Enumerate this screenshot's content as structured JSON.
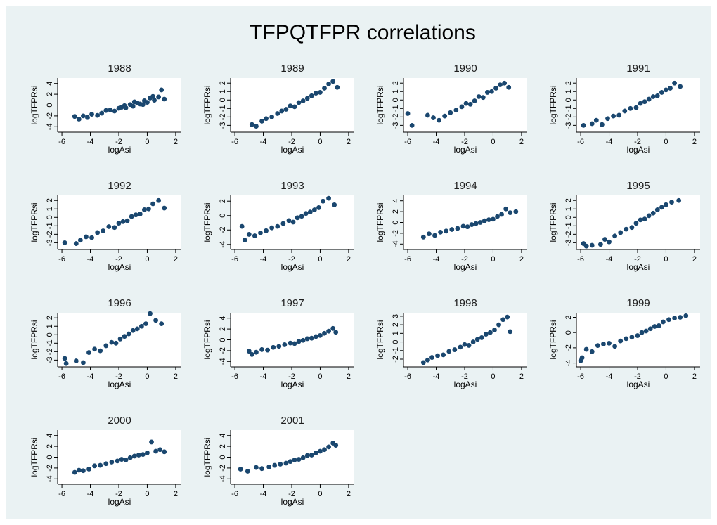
{
  "title": "TFPQTFPR correlations",
  "chart_data": [
    {
      "type": "scatter",
      "title": "1988",
      "xlabel": "logAsi",
      "ylabel": "logTFPRsi",
      "color": "#1a476f",
      "xlim": [
        -6.3,
        2.4
      ],
      "ylim": [
        -5,
        5
      ],
      "xticks": [
        -6,
        -4,
        -2,
        0,
        2
      ],
      "yticks": [
        -4,
        -2,
        0,
        2,
        4
      ],
      "x": [
        -5.1,
        -4.8,
        -4.5,
        -4.2,
        -3.9,
        -3.5,
        -3.2,
        -2.9,
        -2.6,
        -2.3,
        -2,
        -1.8,
        -1.5,
        -1.2,
        -1,
        -0.7,
        -0.5,
        -0.2,
        0,
        0.2,
        0.5,
        0.8,
        1,
        1.2,
        -1.6,
        -0.9,
        -0.3,
        0.4
      ],
      "y": [
        -2.1,
        -2.6,
        -2,
        -2.3,
        -1.7,
        -1.9,
        -1.5,
        -1,
        -0.9,
        -1.1,
        -0.6,
        -0.4,
        -0.5,
        0.1,
        -0.2,
        0.4,
        0.2,
        0.8,
        0.5,
        1.3,
        0.9,
        1.5,
        2.8,
        1.1,
        -0.1,
        0.6,
        0.1,
        1.6
      ]
    },
    {
      "type": "scatter",
      "title": "1989",
      "xlabel": "logAsi",
      "ylabel": "logTFPRsi",
      "color": "#1a476f",
      "xlim": [
        -6.3,
        2.4
      ],
      "ylim": [
        -3.8,
        2.6
      ],
      "xticks": [
        -6,
        -4,
        -2,
        0,
        2
      ],
      "yticks": [
        -3,
        -2,
        -1,
        0,
        1,
        2
      ],
      "x": [
        -4.8,
        -4.5,
        -4.1,
        -3.8,
        -3.4,
        -3,
        -2.7,
        -2.4,
        -2.1,
        -1.8,
        -1.5,
        -1.2,
        -0.9,
        -0.6,
        -0.3,
        0,
        0.3,
        0.6,
        0.9,
        1.2
      ],
      "y": [
        -2.9,
        -3.1,
        -2.5,
        -2.2,
        -2,
        -1.6,
        -1.3,
        -1.1,
        -0.7,
        -0.8,
        -0.3,
        -0.1,
        0.2,
        0.5,
        0.8,
        0.9,
        1.4,
        1.9,
        2.2,
        1.5
      ]
    },
    {
      "type": "scatter",
      "title": "1990",
      "xlabel": "logAsi",
      "ylabel": "logTFPRsi",
      "color": "#1a476f",
      "xlim": [
        -6.3,
        2.4
      ],
      "ylim": [
        -3.8,
        2.6
      ],
      "xticks": [
        -6,
        -4,
        -2,
        0,
        2
      ],
      "yticks": [
        -3,
        -2,
        -1,
        0,
        1,
        2
      ],
      "x": [
        -6,
        -5.7,
        -4.6,
        -4.2,
        -3.8,
        -3.4,
        -3,
        -2.6,
        -2.2,
        -1.9,
        -1.6,
        -1.3,
        -1,
        -0.7,
        -0.4,
        -0.1,
        0.2,
        0.5,
        0.8,
        1.1
      ],
      "y": [
        -1.6,
        -3,
        -1.8,
        -2.1,
        -2.4,
        -1.9,
        -1.5,
        -1.2,
        -0.8,
        -0.4,
        -0.5,
        -0.1,
        0.4,
        0.3,
        0.9,
        1,
        1.4,
        1.8,
        2,
        1.5
      ]
    },
    {
      "type": "scatter",
      "title": "1991",
      "xlabel": "logAsi",
      "ylabel": "logTFPRsi",
      "color": "#1a476f",
      "xlim": [
        -6.3,
        2.4
      ],
      "ylim": [
        -3.8,
        2.6
      ],
      "xticks": [
        -6,
        -4,
        -2,
        0,
        2
      ],
      "yticks": [
        -3,
        -2,
        -1,
        0,
        1,
        2
      ],
      "x": [
        -5.8,
        -5.2,
        -4.9,
        -4.5,
        -4.1,
        -3.7,
        -3.3,
        -2.9,
        -2.5,
        -2.1,
        -1.8,
        -1.5,
        -1.2,
        -0.9,
        -0.6,
        -0.3,
        0,
        0.3,
        0.6,
        1
      ],
      "y": [
        -3,
        -2.8,
        -2.4,
        -2.9,
        -2.2,
        -1.9,
        -1.8,
        -1.3,
        -1,
        -0.9,
        -0.4,
        -0.2,
        0.1,
        0.4,
        0.5,
        0.9,
        1.2,
        1.4,
        2,
        1.6
      ]
    },
    {
      "type": "scatter",
      "title": "1992",
      "xlabel": "logAsi",
      "ylabel": "logTFPRsi",
      "color": "#1a476f",
      "xlim": [
        -6.3,
        2.4
      ],
      "ylim": [
        -3.8,
        2.6
      ],
      "xticks": [
        -6,
        -4,
        -2,
        0,
        2
      ],
      "yticks": [
        -3,
        -2,
        -1,
        0,
        1,
        2
      ],
      "x": [
        -5.8,
        -5,
        -4.7,
        -4.3,
        -3.9,
        -3.5,
        -3.1,
        -2.7,
        -2.3,
        -2,
        -1.7,
        -1.4,
        -1.1,
        -0.8,
        -0.5,
        -0.2,
        0.1,
        0.4,
        0.8,
        1.2
      ],
      "y": [
        -3,
        -3.1,
        -2.7,
        -2.3,
        -2.4,
        -1.8,
        -1.6,
        -1.1,
        -1.2,
        -0.7,
        -0.5,
        -0.4,
        0.1,
        0.3,
        0.4,
        0.9,
        1,
        1.6,
        2,
        1.1
      ]
    },
    {
      "type": "scatter",
      "title": "1993",
      "xlabel": "logAsi",
      "ylabel": "logTFPRsi",
      "color": "#1a476f",
      "xlim": [
        -6.3,
        2.4
      ],
      "ylim": [
        -4.7,
        2.8
      ],
      "xticks": [
        -6,
        -4,
        -2,
        0,
        2
      ],
      "yticks": [
        -4,
        -2,
        0,
        2
      ],
      "x": [
        -5.5,
        -5.3,
        -5,
        -4.6,
        -4.2,
        -3.8,
        -3.4,
        -3,
        -2.6,
        -2.2,
        -1.9,
        -1.6,
        -1.3,
        -1,
        -0.7,
        -0.4,
        -0.1,
        0.2,
        0.6,
        1
      ],
      "y": [
        -1.5,
        -3.4,
        -2.6,
        -2.8,
        -2.4,
        -2.1,
        -1.7,
        -1.5,
        -1.1,
        -0.7,
        -0.9,
        -0.3,
        -0.1,
        0.3,
        0.5,
        0.8,
        1.1,
        2,
        2.4,
        1.5
      ]
    },
    {
      "type": "scatter",
      "title": "1994",
      "xlabel": "logAsi",
      "ylabel": "logTFPRsi",
      "color": "#1a476f",
      "xlim": [
        -6.3,
        2.4
      ],
      "ylim": [
        -5,
        5
      ],
      "xticks": [
        -6,
        -4,
        -2,
        0,
        2
      ],
      "yticks": [
        -4,
        -2,
        0,
        2,
        4
      ],
      "x": [
        -4.9,
        -4.5,
        -4.1,
        -3.7,
        -3.3,
        -2.9,
        -2.5,
        -2.1,
        -1.8,
        -1.5,
        -1.2,
        -0.9,
        -0.6,
        -0.3,
        0,
        0.3,
        0.6,
        0.9,
        1.2,
        1.6
      ],
      "y": [
        -2.7,
        -2.1,
        -2.4,
        -1.8,
        -1.6,
        -1.3,
        -1.1,
        -0.7,
        -0.8,
        -0.4,
        -0.2,
        0,
        0.3,
        0.5,
        0.6,
        1.1,
        1.5,
        2.5,
        1.8,
        2
      ]
    },
    {
      "type": "scatter",
      "title": "1995",
      "xlabel": "logAsi",
      "ylabel": "logTFPRsi",
      "color": "#1a476f",
      "xlim": [
        -6.3,
        2.4
      ],
      "ylim": [
        -3.8,
        2.6
      ],
      "xticks": [
        -6,
        -4,
        -2,
        0,
        2
      ],
      "yticks": [
        -3,
        -2,
        -1,
        0,
        1,
        2
      ],
      "x": [
        -5.8,
        -5.6,
        -5.2,
        -4.6,
        -4.3,
        -4,
        -3.6,
        -3.2,
        -2.8,
        -2.4,
        -2.1,
        -1.8,
        -1.5,
        -1.2,
        -0.9,
        -0.6,
        -0.3,
        0,
        0.4,
        0.9
      ],
      "y": [
        -3.1,
        -3.4,
        -3.3,
        -3.2,
        -2.6,
        -2.9,
        -2.2,
        -1.8,
        -1.4,
        -1.2,
        -0.7,
        -0.3,
        -0.2,
        0.2,
        0.5,
        0.9,
        1.2,
        1.5,
        1.8,
        2
      ]
    },
    {
      "type": "scatter",
      "title": "1996",
      "xlabel": "logAsi",
      "ylabel": "logTFPRsi",
      "color": "#1a476f",
      "xlim": [
        -6.3,
        2.4
      ],
      "ylim": [
        -3.8,
        2.6
      ],
      "xticks": [
        -6,
        -4,
        -2,
        0,
        2
      ],
      "yticks": [
        -3,
        -2,
        -1,
        0,
        1,
        2
      ],
      "x": [
        -5.8,
        -5.7,
        -5,
        -4.5,
        -4.1,
        -3.7,
        -3.3,
        -2.9,
        -2.5,
        -2.2,
        -1.9,
        -1.6,
        -1.3,
        -1,
        -0.7,
        -0.4,
        -0.1,
        0.2,
        0.6,
        1
      ],
      "y": [
        -2.8,
        -3.4,
        -3.1,
        -3.3,
        -2.1,
        -1.7,
        -1.9,
        -1.3,
        -0.9,
        -1,
        -0.5,
        -0.2,
        0.1,
        0.5,
        0.7,
        1,
        1.3,
        2.5,
        1.7,
        1.3
      ]
    },
    {
      "type": "scatter",
      "title": "1997",
      "xlabel": "logAsi",
      "ylabel": "logTFPRsi",
      "color": "#1a476f",
      "xlim": [
        -6.3,
        2.4
      ],
      "ylim": [
        -5,
        5
      ],
      "xticks": [
        -6,
        -4,
        -2,
        0,
        2
      ],
      "yticks": [
        -4,
        -2,
        0,
        2,
        4
      ],
      "x": [
        -5,
        -4.8,
        -4.5,
        -4.1,
        -3.7,
        -3.3,
        -2.9,
        -2.5,
        -2.1,
        -1.8,
        -1.5,
        -1.2,
        -0.9,
        -0.6,
        -0.3,
        0,
        0.3,
        0.6,
        0.9,
        1.1
      ],
      "y": [
        -2.1,
        -2.7,
        -2.3,
        -1.8,
        -1.9,
        -1.4,
        -1.2,
        -0.9,
        -0.6,
        -0.7,
        -0.3,
        -0.1,
        0.2,
        0.3,
        0.6,
        0.8,
        1.2,
        1.6,
        2.1,
        1.4
      ]
    },
    {
      "type": "scatter",
      "title": "1998",
      "xlabel": "logAsi",
      "ylabel": "logTFPRsi",
      "color": "#1a476f",
      "xlim": [
        -6.3,
        2.4
      ],
      "ylim": [
        -2.9,
        3.4
      ],
      "xticks": [
        -6,
        -4,
        -2,
        0,
        2
      ],
      "yticks": [
        -2,
        -1,
        0,
        1,
        2,
        3
      ],
      "x": [
        -4.9,
        -4.6,
        -4.3,
        -3.9,
        -3.5,
        -3.1,
        -2.7,
        -2.3,
        -2,
        -1.7,
        -1.4,
        -1.1,
        -0.8,
        -0.5,
        -0.2,
        0.1,
        0.4,
        0.7,
        1,
        1.2
      ],
      "y": [
        -2.4,
        -2.1,
        -1.8,
        -1.6,
        -1.5,
        -1.1,
        -0.9,
        -0.6,
        -0.3,
        -0.4,
        0,
        0.3,
        0.5,
        0.9,
        1.1,
        1.4,
        2,
        2.6,
        2.9,
        1.2
      ]
    },
    {
      "type": "scatter",
      "title": "1999",
      "xlabel": "logAsi",
      "ylabel": "logTFPRsi",
      "color": "#1a476f",
      "xlim": [
        -6.3,
        2.4
      ],
      "ylim": [
        -4.5,
        2.6
      ],
      "xticks": [
        -6,
        -4,
        -2,
        0,
        2
      ],
      "yticks": [
        -4,
        -2,
        0,
        2
      ],
      "x": [
        -6,
        -5.9,
        -5.6,
        -5.2,
        -4.8,
        -4.4,
        -4,
        -3.6,
        -3.2,
        -2.8,
        -2.4,
        -2,
        -1.7,
        -1.4,
        -1.1,
        -0.8,
        -0.5,
        -0.2,
        0.2,
        0.6,
        1,
        1.4
      ],
      "y": [
        -3.7,
        -3.3,
        -2.2,
        -2.5,
        -1.7,
        -1.5,
        -1.4,
        -1.8,
        -1.1,
        -0.8,
        -0.6,
        -0.4,
        0,
        0.2,
        0.5,
        0.8,
        0.9,
        1.4,
        1.7,
        1.9,
        2,
        2.2
      ]
    },
    {
      "type": "scatter",
      "title": "2000",
      "xlabel": "logAsi",
      "ylabel": "logTFPRsi",
      "color": "#1a476f",
      "xlim": [
        -6.3,
        2.4
      ],
      "ylim": [
        -5,
        5
      ],
      "xticks": [
        -6,
        -4,
        -2,
        0,
        2
      ],
      "yticks": [
        -4,
        -2,
        0,
        2,
        4
      ],
      "x": [
        -5.1,
        -4.8,
        -4.5,
        -4.1,
        -3.7,
        -3.3,
        -2.9,
        -2.5,
        -2.1,
        -1.8,
        -1.5,
        -1.2,
        -0.9,
        -0.6,
        -0.3,
        0,
        0.3,
        0.6,
        0.9,
        1.2
      ],
      "y": [
        -2.8,
        -2.4,
        -2.5,
        -2.2,
        -1.6,
        -1.5,
        -1.2,
        -0.9,
        -0.7,
        -0.4,
        -0.5,
        -0.1,
        0.2,
        0.4,
        0.5,
        0.8,
        2.8,
        1.1,
        1.4,
        1
      ]
    },
    {
      "type": "scatter",
      "title": "2001",
      "xlabel": "logAsi",
      "ylabel": "logTFPRsi",
      "color": "#1a476f",
      "xlim": [
        -6.3,
        2.4
      ],
      "ylim": [
        -5,
        5
      ],
      "xticks": [
        -6,
        -4,
        -2,
        0,
        2
      ],
      "yticks": [
        -4,
        -2,
        0,
        2,
        4
      ],
      "x": [
        -5.6,
        -5.1,
        -4.5,
        -4.1,
        -3.6,
        -3.2,
        -2.8,
        -2.4,
        -2.1,
        -1.8,
        -1.5,
        -1.2,
        -0.9,
        -0.6,
        -0.3,
        0,
        0.3,
        0.6,
        0.9,
        1.1
      ],
      "y": [
        -2.2,
        -2.6,
        -1.9,
        -2.1,
        -1.8,
        -1.5,
        -1.3,
        -1.1,
        -0.8,
        -0.5,
        -0.4,
        -0.1,
        0.3,
        0.4,
        0.8,
        1.1,
        1.4,
        1.9,
        2.6,
        2.2
      ]
    }
  ]
}
